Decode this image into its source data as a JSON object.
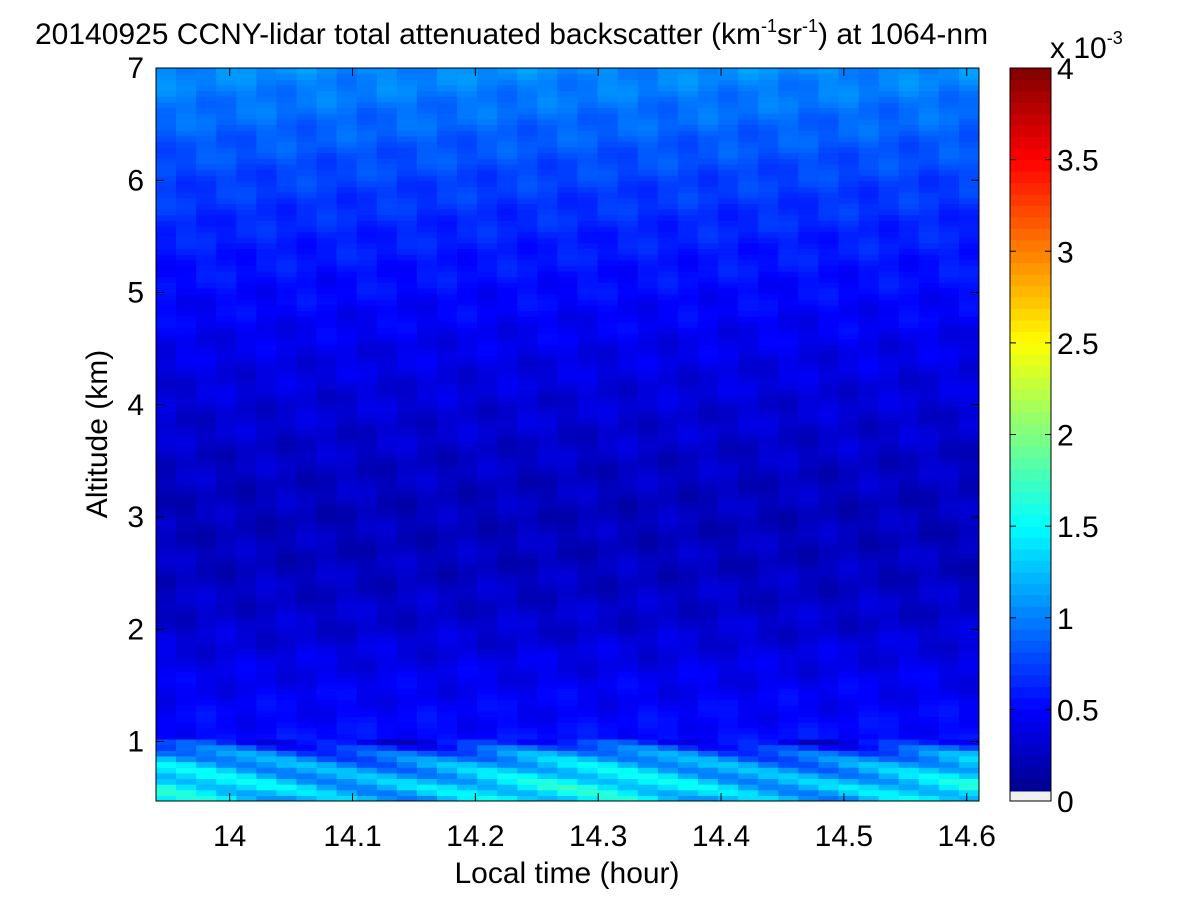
{
  "chart_data": {
    "type": "heatmap",
    "title": {
      "prefix": "20140925 CCNY-lidar total attenuated backscatter (km",
      "sup1": "-1",
      "mid": "sr",
      "sup2": "-1",
      "suffix": ") at 1064-nm"
    },
    "xlabel": "Local time (hour)",
    "ylabel": "Altitude (km)",
    "xlim": [
      13.94,
      14.61
    ],
    "ylim": [
      0.47,
      7
    ],
    "xticks": [
      14,
      14.1,
      14.2,
      14.3,
      14.4,
      14.5,
      14.6
    ],
    "xtick_labels": [
      "14",
      "14.1",
      "14.2",
      "14.3",
      "14.4",
      "14.5",
      "14.6"
    ],
    "yticks": [
      1,
      2,
      3,
      4,
      5,
      6,
      7
    ],
    "ytick_labels": [
      "1",
      "2",
      "3",
      "4",
      "5",
      "6",
      "7"
    ],
    "colorbar": {
      "colormap": "jet",
      "range": [
        0,
        0.004
      ],
      "ticks": [
        0,
        0.5,
        1,
        1.5,
        2,
        2.5,
        3,
        3.5,
        4
      ],
      "tick_labels": [
        "0",
        "0.5",
        "1",
        "1.5",
        "2",
        "2.5",
        "3",
        "3.5",
        "4"
      ],
      "multiplier_base": "x 10",
      "multiplier_exp": "-3",
      "below_range_color": "#f0f0f0"
    },
    "profile": {
      "altitude_km": [
        0.5,
        0.6,
        0.7,
        0.8,
        0.9,
        1.0,
        1.2,
        1.5,
        1.8,
        2.0,
        2.5,
        3.0,
        3.5,
        4.0,
        4.5,
        5.0,
        5.5,
        6.0,
        6.5,
        7.0
      ],
      "backscatter_e3": [
        1.3,
        1.35,
        1.25,
        1.15,
        0.95,
        0.55,
        0.5,
        0.45,
        0.38,
        0.32,
        0.26,
        0.24,
        0.28,
        0.34,
        0.42,
        0.52,
        0.62,
        0.75,
        0.9,
        1.05
      ]
    }
  }
}
